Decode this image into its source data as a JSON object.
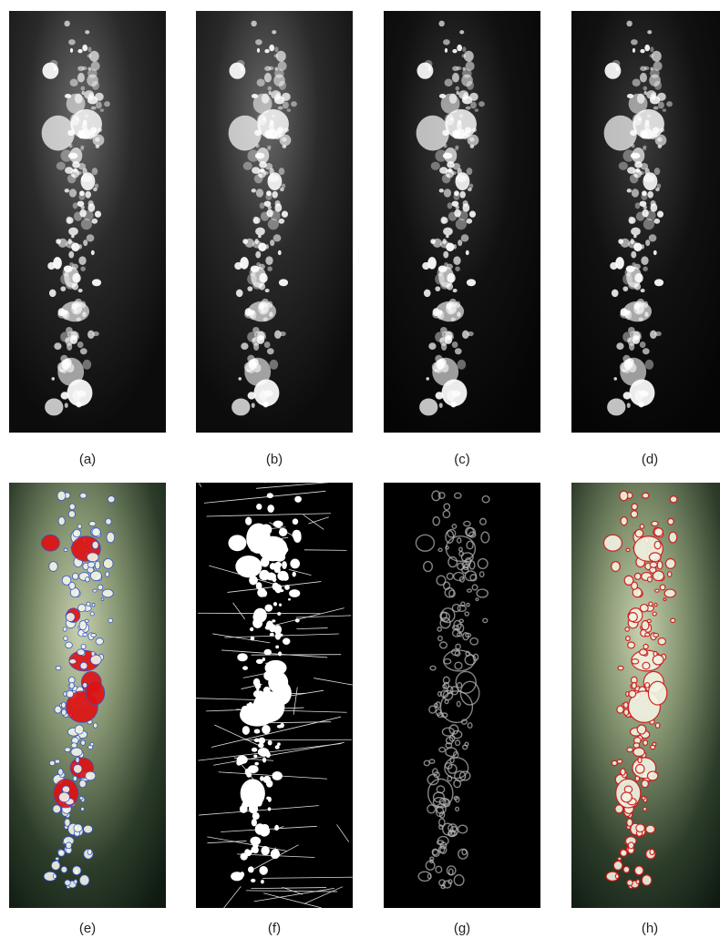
{
  "figure": {
    "labels": [
      "(a)",
      "(b)",
      "(c)",
      "(d)",
      "(e)",
      "(f)",
      "(g)",
      "(h)"
    ]
  }
}
